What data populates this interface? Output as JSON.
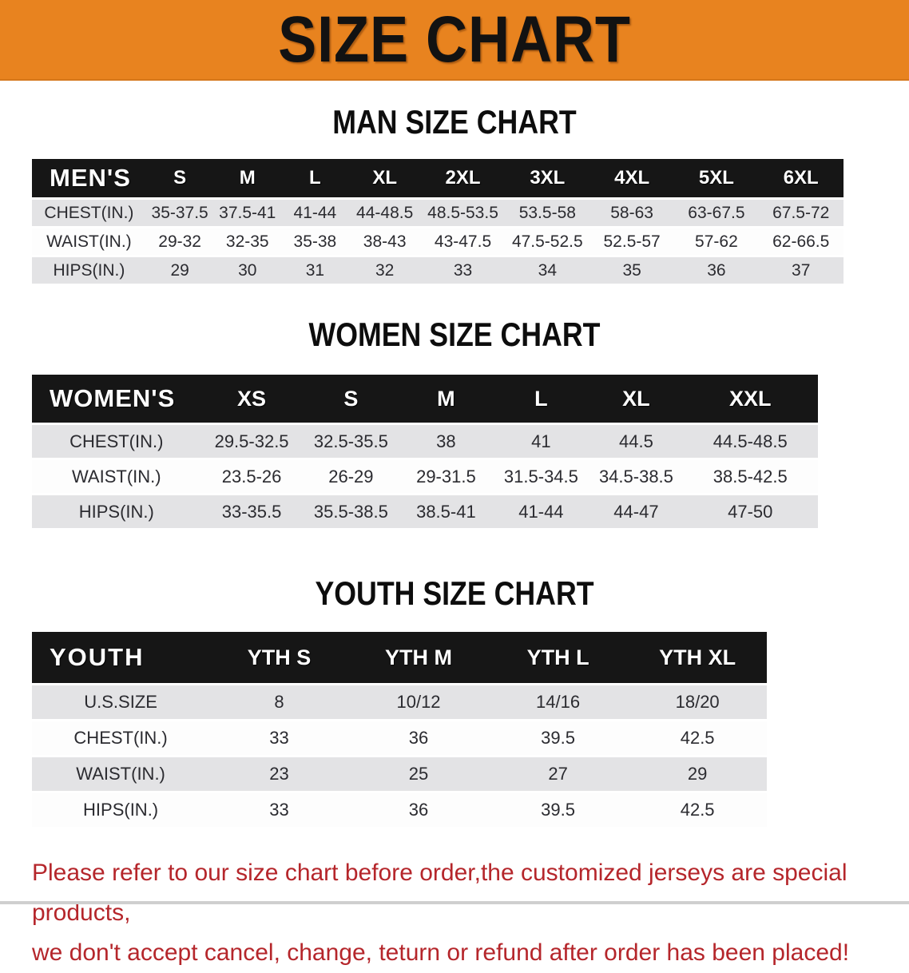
{
  "banner": {
    "title": "SIZE CHART",
    "bg_color": "#E8831F",
    "text_color": "#121212"
  },
  "colors": {
    "header_bar": "#161616",
    "stripe_row": "#E3E3E5",
    "white_row": "#FDFDFD",
    "note_red": "#B5262B"
  },
  "tables": [
    {
      "heading": "MAN SIZE CHART",
      "header_label": "MEN'S",
      "sizes": [
        "S",
        "M",
        "L",
        "XL",
        "2XL",
        "3XL",
        "4XL",
        "5XL",
        "6XL"
      ],
      "rows": [
        {
          "label": "CHEST(IN.)",
          "values": [
            "35-37.5",
            "37.5-41",
            "41-44",
            "44-48.5",
            "48.5-53.5",
            "53.5-58",
            "58-63",
            "63-67.5",
            "67.5-72"
          ]
        },
        {
          "label": "WAIST(IN.)",
          "values": [
            "29-32",
            "32-35",
            "35-38",
            "38-43",
            "43-47.5",
            "47.5-52.5",
            "52.5-57",
            "57-62",
            "62-66.5"
          ]
        },
        {
          "label": "HIPS(IN.)",
          "values": [
            "29",
            "30",
            "31",
            "32",
            "33",
            "34",
            "35",
            "36",
            "37"
          ]
        }
      ]
    },
    {
      "heading": "WOMEN SIZE CHART",
      "header_label": "WOMEN'S",
      "sizes": [
        "XS",
        "S",
        "M",
        "L",
        "XL",
        "XXL"
      ],
      "rows": [
        {
          "label": "CHEST(IN.)",
          "values": [
            "29.5-32.5",
            "32.5-35.5",
            "38",
            "41",
            "44.5",
            "44.5-48.5"
          ]
        },
        {
          "label": "WAIST(IN.)",
          "values": [
            "23.5-26",
            "26-29",
            "29-31.5",
            "31.5-34.5",
            "34.5-38.5",
            "38.5-42.5"
          ]
        },
        {
          "label": "HIPS(IN.)",
          "values": [
            "33-35.5",
            "35.5-38.5",
            "38.5-41",
            "41-44",
            "44-47",
            "47-50"
          ]
        }
      ]
    },
    {
      "heading": "YOUTH SIZE CHART",
      "header_label": "YOUTH",
      "sizes": [
        "YTH S",
        "YTH M",
        "YTH L",
        "YTH XL"
      ],
      "rows": [
        {
          "label": "U.S.SIZE",
          "values": [
            "8",
            "10/12",
            "14/16",
            "18/20"
          ]
        },
        {
          "label": "CHEST(IN.)",
          "values": [
            "33",
            "36",
            "39.5",
            "42.5"
          ]
        },
        {
          "label": "WAIST(IN.)",
          "values": [
            "23",
            "25",
            "27",
            "29"
          ]
        },
        {
          "label": "HIPS(IN.)",
          "values": [
            "33",
            "36",
            "39.5",
            "42.5"
          ]
        }
      ]
    }
  ],
  "note": {
    "lines": [
      "Please refer to our size chart before order,the customized jerseys are special products,",
      "we don't accept cancel, change, teturn or refund after order has been placed!"
    ]
  }
}
